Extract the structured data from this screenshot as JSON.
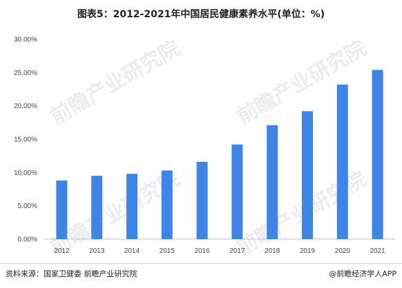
{
  "title": "图表5：2012-2021年中国居民健康素养水平(单位：%)",
  "source": "资料来源：国家卫健委 前瞻产业研究院",
  "brand": "@前瞻经济学人APP",
  "watermark": "前瞻产业研究院",
  "colors": {
    "bar": "#3d85e6",
    "axis": "#bfbfbf"
  },
  "chart_data": {
    "type": "bar",
    "title": "图表5：2012-2021年中国居民健康素养水平(单位：%)",
    "categories": [
      "2012",
      "2013",
      "2014",
      "2015",
      "2016",
      "2017",
      "2018",
      "2019",
      "2020",
      "2021"
    ],
    "values": [
      8.8,
      9.5,
      9.8,
      10.3,
      11.6,
      14.2,
      17.1,
      19.2,
      23.2,
      25.4
    ],
    "yticks": [
      "0.00%",
      "5.00%",
      "10.00%",
      "15.00%",
      "20.00%",
      "25.00%",
      "30.00%"
    ],
    "ylim": [
      0,
      30
    ],
    "grid": false,
    "legend": "none"
  }
}
